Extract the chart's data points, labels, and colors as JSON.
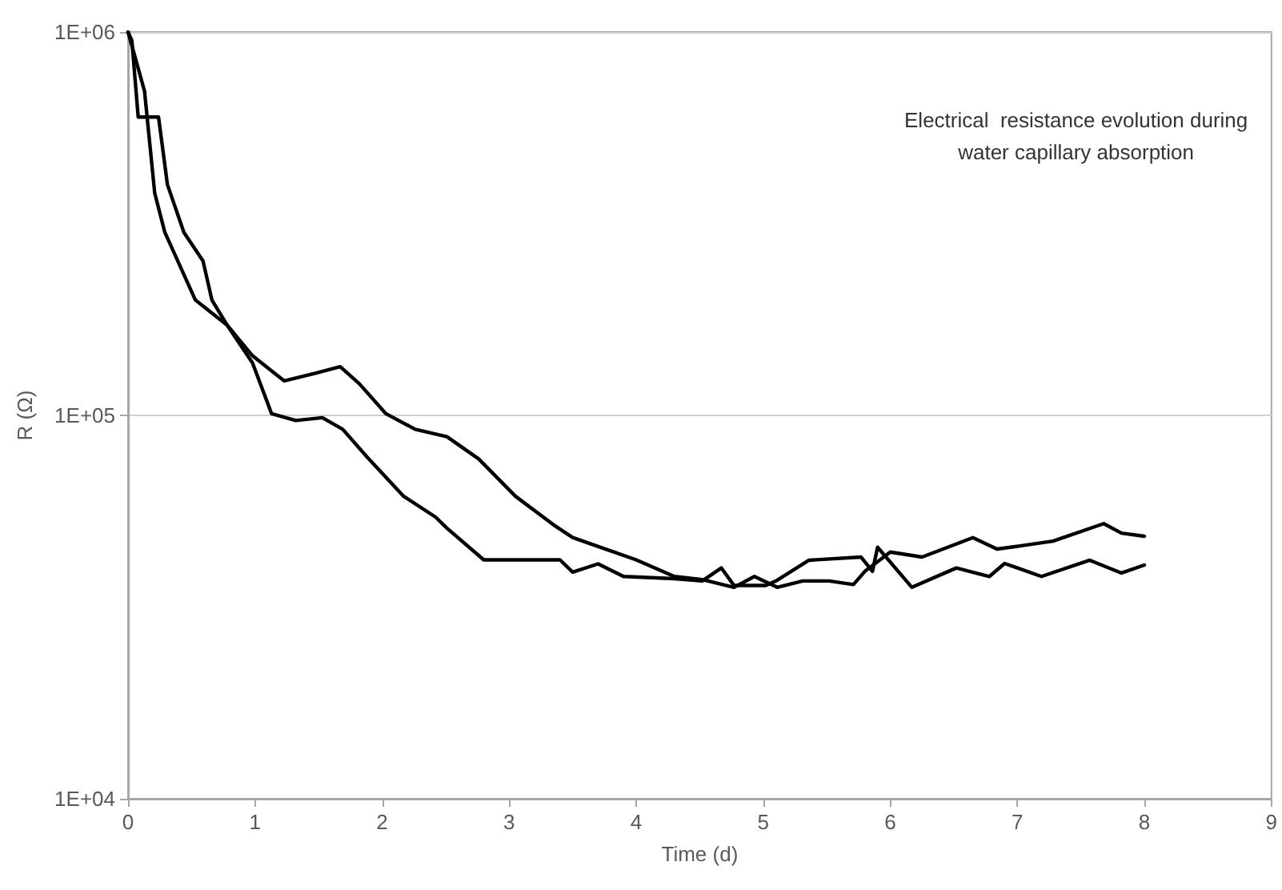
{
  "chart_data": {
    "type": "line",
    "xlabel": "Time (d)",
    "ylabel": "R (Ω)",
    "annotations": [
      "Electrical  resistance evolution during\nwater capillary absorption"
    ],
    "xlim": [
      0,
      9
    ],
    "xticks": [
      0,
      1,
      2,
      3,
      4,
      5,
      6,
      7,
      8,
      9
    ],
    "ylim": [
      10000,
      1000000
    ],
    "yticks": [
      {
        "value": 10000,
        "label": "1E+04"
      },
      {
        "value": 100000,
        "label": "1E+05"
      },
      {
        "value": 1000000,
        "label": "1E+06"
      }
    ],
    "log": "y",
    "grid": "y",
    "marker": "none",
    "line_style": "solid",
    "series": [
      {
        "color": "#000000",
        "x": [
          0,
          0.03,
          0.08,
          0.24,
          0.31,
          0.44,
          0.59,
          0.66,
          0.78,
          0.98,
          1.23,
          1.48,
          1.67,
          1.82,
          2.03,
          2.26,
          2.51,
          2.76,
          3.05,
          3.35,
          3.5,
          4.0,
          4.3,
          4.52,
          4.77,
          4.93,
          5.11,
          5.31,
          5.52,
          5.71,
          5.8,
          6.0,
          6.25,
          6.65,
          6.84,
          7.03,
          7.28,
          7.68,
          7.82,
          8.0
        ],
        "values": [
          1000000,
          950000,
          600000,
          600000,
          400000,
          300000,
          253000,
          200000,
          172000,
          143000,
          123000,
          129000,
          134000,
          121000,
          101000,
          92000,
          88000,
          77000,
          61500,
          51800,
          48000,
          42000,
          38000,
          37300,
          35600,
          38000,
          35600,
          37000,
          37000,
          36200,
          39200,
          44000,
          42700,
          48000,
          44800,
          45700,
          47000,
          52200,
          49300,
          48400
        ]
      },
      {
        "color": "#000000",
        "x": [
          0,
          0.06,
          0.13,
          0.21,
          0.29,
          0.53,
          0.78,
          0.98,
          1.13,
          1.32,
          1.53,
          1.69,
          1.88,
          2.17,
          2.42,
          2.51,
          2.8,
          3.4,
          3.5,
          3.7,
          3.9,
          4.3,
          4.52,
          4.67,
          4.77,
          5.02,
          5.1,
          5.36,
          5.77,
          5.86,
          5.9,
          6.17,
          6.52,
          6.78,
          6.9,
          7.19,
          7.57,
          7.82,
          8.0
        ],
        "values": [
          1000000,
          850000,
          700000,
          380000,
          300000,
          200000,
          172000,
          137000,
          101000,
          97000,
          98600,
          92000,
          78000,
          61500,
          54300,
          50800,
          42000,
          42000,
          39000,
          41000,
          38000,
          37500,
          37000,
          40000,
          36000,
          36000,
          37000,
          41900,
          42700,
          39200,
          45300,
          35600,
          40000,
          38000,
          41100,
          38000,
          41900,
          38800,
          40700
        ]
      }
    ]
  }
}
